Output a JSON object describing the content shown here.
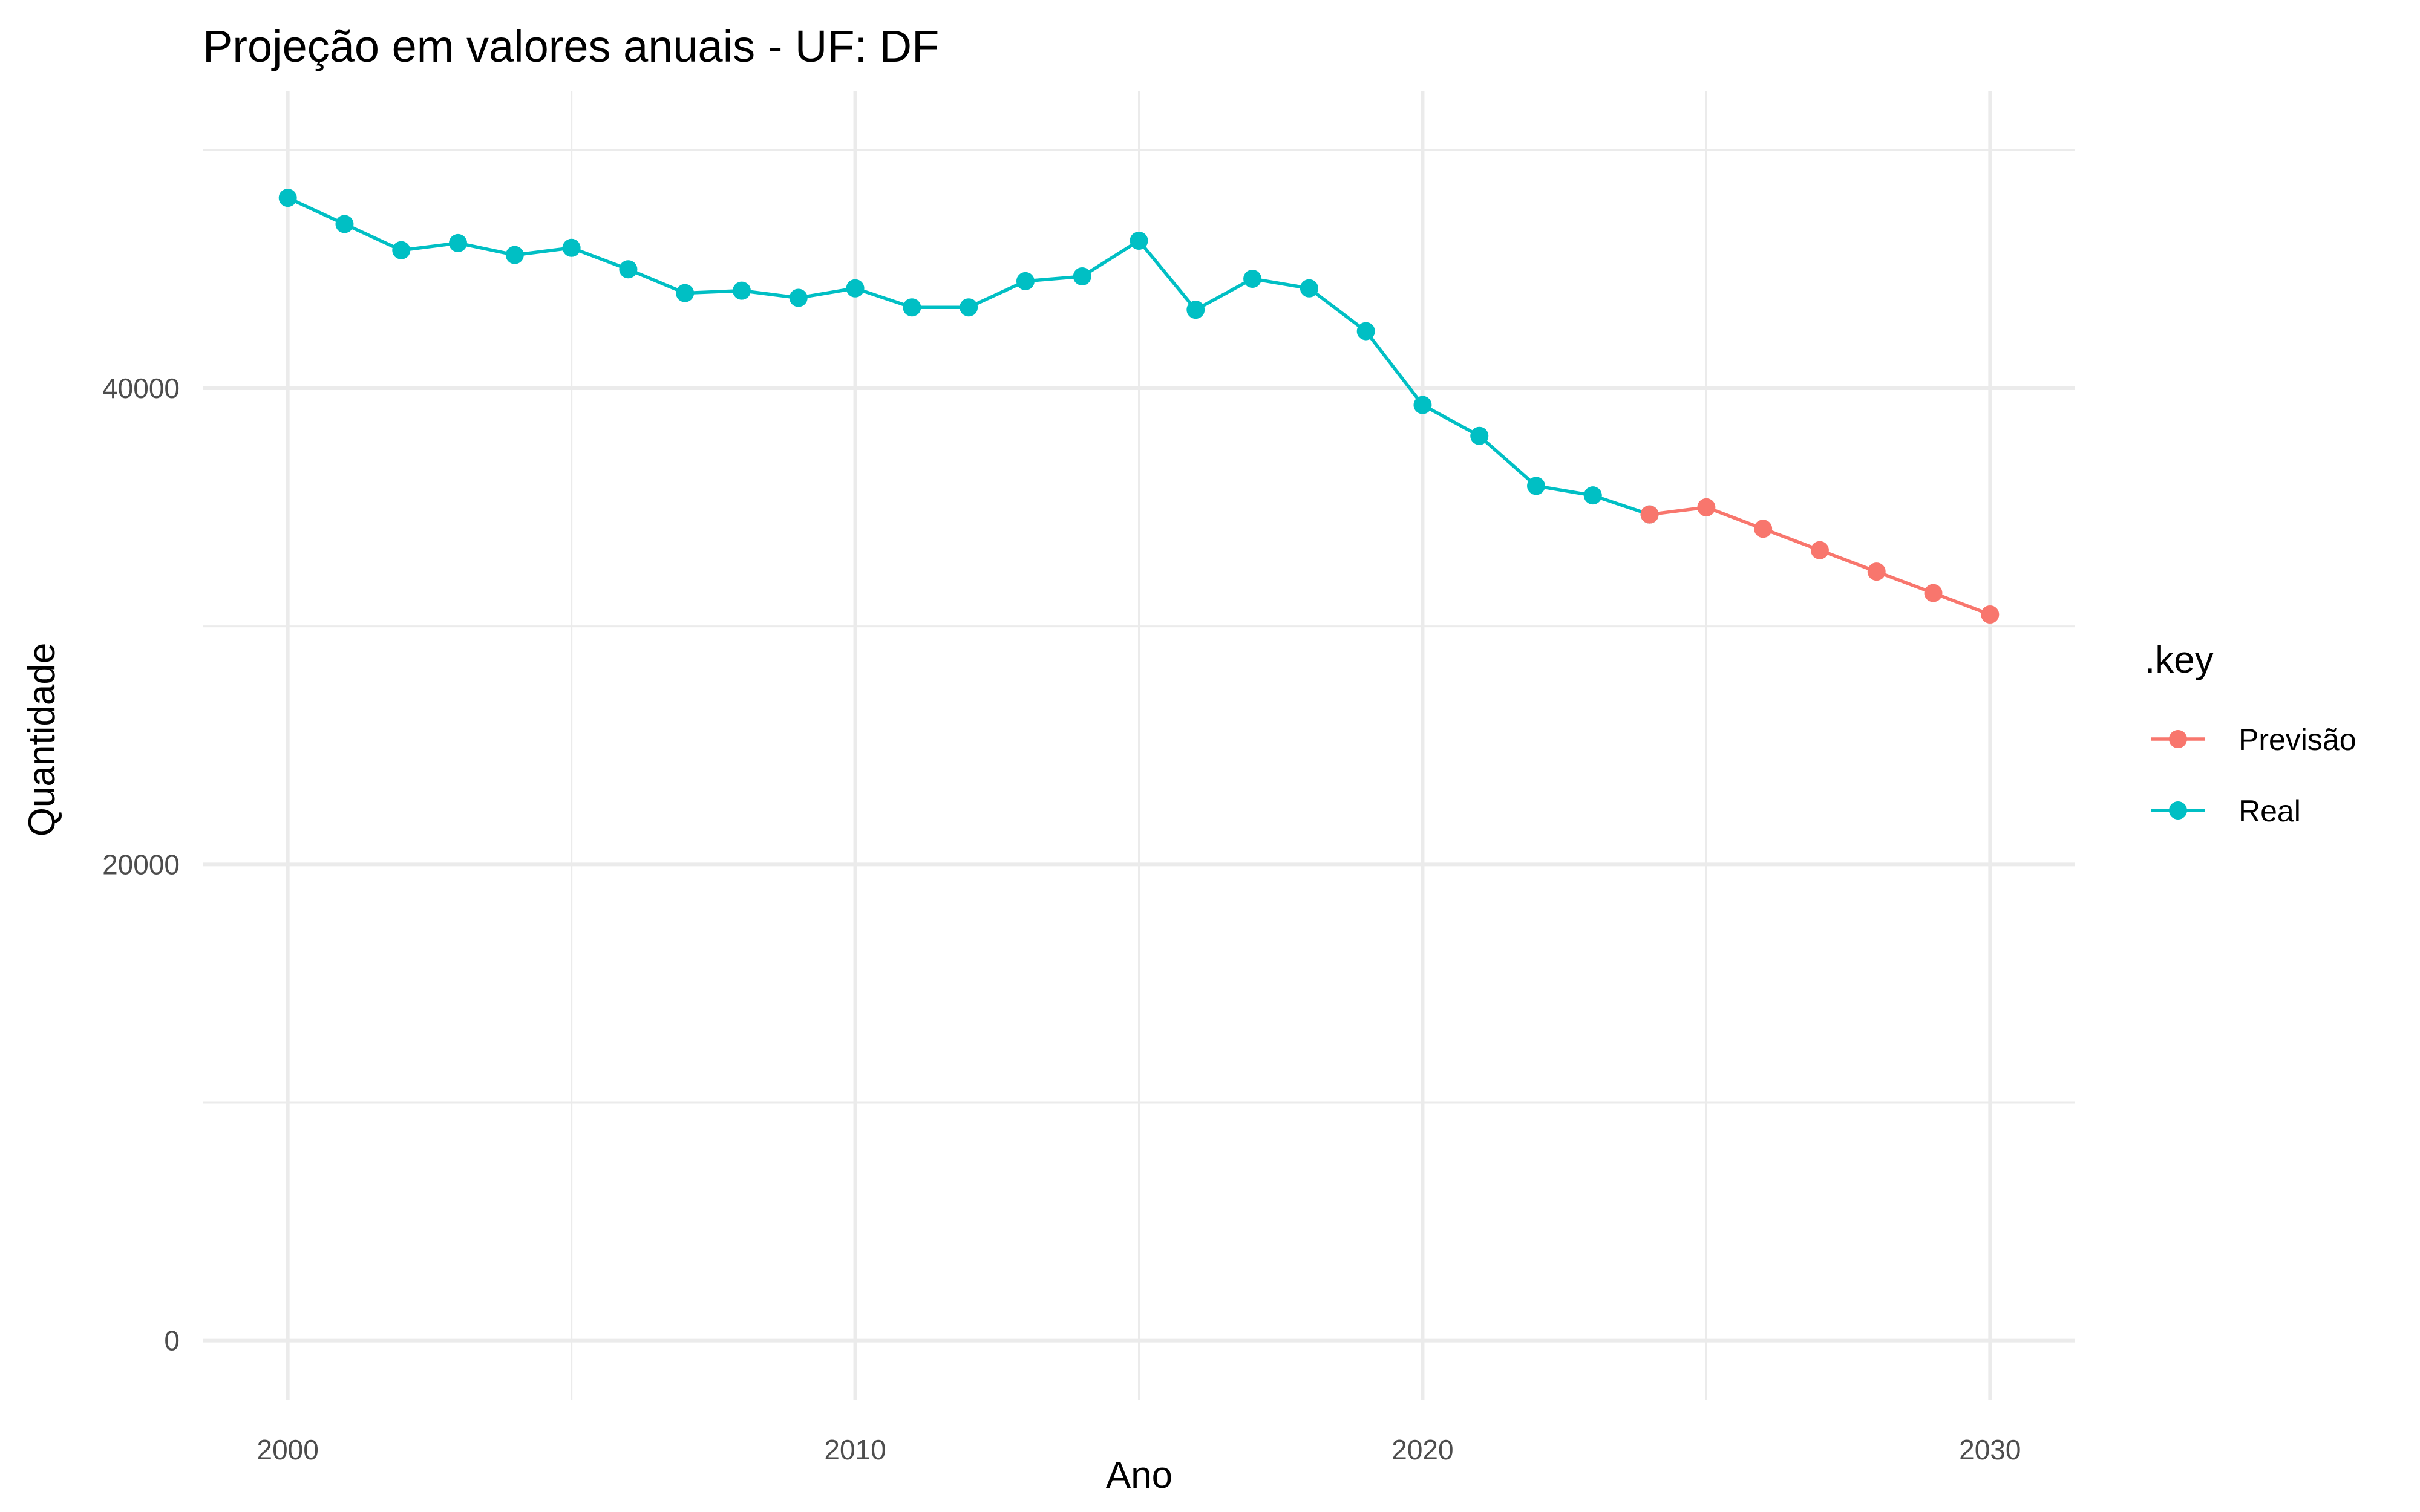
{
  "chart_data": {
    "type": "line",
    "title": "Projeção em valores anuais - UF: DF",
    "xlabel": "Ano",
    "ylabel": "Quantidade",
    "xlim": [
      1998.5,
      2031.5
    ],
    "ylim": [
      -2500,
      52500
    ],
    "x_ticks": [
      2000,
      2010,
      2020,
      2030
    ],
    "x_tick_labels": [
      "2000",
      "2010",
      "2020",
      "2030"
    ],
    "y_ticks": [
      0,
      20000,
      40000
    ],
    "y_tick_labels": [
      "0",
      "20000",
      "40000"
    ],
    "x_minor_gridlines": [
      2005,
      2015,
      2025
    ],
    "y_minor_gridlines": [
      10000,
      30000,
      50000
    ],
    "grid": true,
    "legend": {
      "title": ".key",
      "position": "right"
    },
    "series": [
      {
        "name": "Previsão",
        "color": "#F8766D",
        "x": [
          2024,
          2025,
          2026,
          2027,
          2028,
          2029,
          2030
        ],
        "values": [
          34700,
          35000,
          34100,
          33200,
          32300,
          31400,
          30500
        ]
      },
      {
        "name": "Real",
        "color": "#00BFC4",
        "x": [
          2000,
          2001,
          2002,
          2003,
          2004,
          2005,
          2006,
          2007,
          2008,
          2009,
          2010,
          2011,
          2012,
          2013,
          2014,
          2015,
          2016,
          2017,
          2018,
          2019,
          2020,
          2021,
          2022,
          2023,
          2024
        ],
        "values": [
          48000,
          46900,
          45800,
          46100,
          45600,
          45900,
          45000,
          44000,
          44100,
          43800,
          44200,
          43400,
          43400,
          44500,
          44700,
          46200,
          43300,
          44600,
          44200,
          42400,
          39300,
          38000,
          35900,
          35500,
          34700
        ]
      }
    ]
  }
}
